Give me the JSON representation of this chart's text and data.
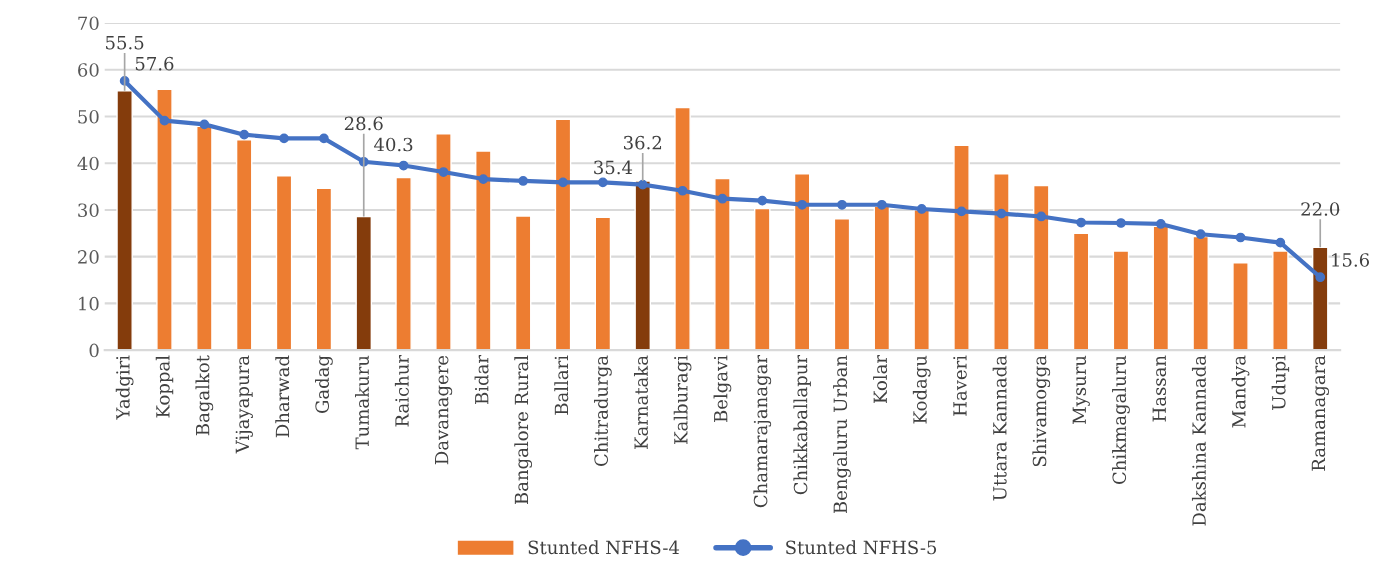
{
  "chart_data": {
    "type": "bar",
    "categories": [
      "Yadgiri",
      "Koppal",
      "Bagalkot",
      "Vijayapura",
      "Dharwad",
      "Gadag",
      "Tumakuru",
      "Raichur",
      "Davanagere",
      "Bidar",
      "Bangalore Rural",
      "Ballari",
      "Chitradurga",
      "Karnataka",
      "Kalburagi",
      "Belgavi",
      "Chamarajanagar",
      "Chikkaballapur",
      "Bengaluru Urban",
      "Kolar",
      "Kodagu",
      "Haveri",
      "Uttara Kannada",
      "Shivamogga",
      "Mysuru",
      "Chikmagaluru",
      "Hassan",
      "Dakshina Kannada",
      "Mandya",
      "Udupi",
      "Ramanagara"
    ],
    "series": [
      {
        "name": "Stunted NFHS-4",
        "color": "#ed7d31",
        "colors": [
          "#843c0c",
          "#ed7d31",
          "#ed7d31",
          "#ed7d31",
          "#ed7d31",
          "#ed7d31",
          "#843c0c",
          "#ed7d31",
          "#ed7d31",
          "#ed7d31",
          "#ed7d31",
          "#ed7d31",
          "#ed7d31",
          "#843c0c",
          "#ed7d31",
          "#ed7d31",
          "#ed7d31",
          "#ed7d31",
          "#ed7d31",
          "#ed7d31",
          "#ed7d31",
          "#ed7d31",
          "#ed7d31",
          "#ed7d31",
          "#ed7d31",
          "#ed7d31",
          "#ed7d31",
          "#ed7d31",
          "#ed7d31",
          "#ed7d31",
          "#843c0c"
        ],
        "values": [
          55.5,
          55.8,
          47.9,
          45.0,
          37.3,
          34.6,
          28.6,
          36.9,
          46.3,
          42.6,
          28.7,
          49.4,
          28.4,
          36.2,
          51.9,
          36.7,
          30.3,
          37.7,
          28.1,
          30.8,
          30.0,
          43.8,
          37.7,
          35.2,
          25.0,
          21.2,
          26.5,
          24.3,
          18.7,
          21.2,
          22.0
        ],
        "value_labels": [
          "55.5",
          null,
          null,
          null,
          null,
          null,
          "28.6",
          null,
          null,
          null,
          null,
          null,
          null,
          "36.2",
          null,
          null,
          null,
          null,
          null,
          null,
          null,
          null,
          null,
          null,
          null,
          null,
          null,
          null,
          null,
          null,
          "22.0"
        ]
      },
      {
        "name": "Stunted NFHS-5",
        "type": "line",
        "color": "#4472c4",
        "marker": "circle",
        "line_style": "solid",
        "values": [
          57.6,
          49.1,
          48.3,
          46.1,
          45.3,
          45.3,
          40.3,
          39.5,
          38.1,
          36.6,
          36.2,
          35.9,
          35.9,
          35.4,
          34.1,
          32.4,
          32.0,
          31.1,
          31.1,
          31.1,
          30.2,
          29.7,
          29.2,
          28.6,
          27.3,
          27.2,
          27.0,
          24.8,
          24.1,
          23.0,
          15.6
        ],
        "value_labels": [
          "57.6",
          null,
          null,
          null,
          null,
          null,
          "40.3",
          null,
          null,
          null,
          null,
          null,
          null,
          "35.4",
          null,
          null,
          null,
          null,
          null,
          null,
          null,
          null,
          null,
          null,
          null,
          null,
          null,
          null,
          null,
          null,
          "15.6"
        ]
      }
    ],
    "ylim": [
      0,
      70
    ],
    "yticks": [
      0,
      10,
      20,
      30,
      40,
      50,
      60,
      70
    ],
    "grid": "y",
    "legend": "bottom"
  }
}
